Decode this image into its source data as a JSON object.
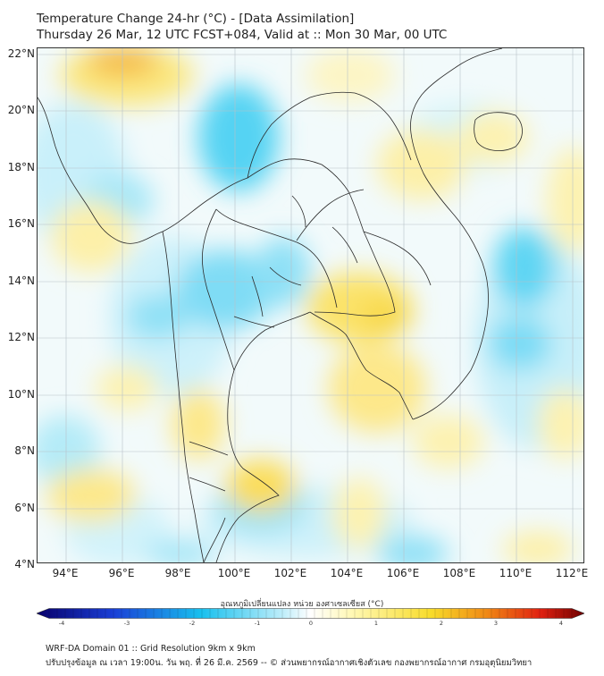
{
  "header": {
    "title_line1": "Temperature Change 24-hr (°C) - [Data Assimilation]",
    "title_line2": "Thursday 26 Mar, 12 UTC FCST+084, Valid at :: Mon 30 Mar, 00 UTC"
  },
  "map": {
    "lat_labels": [
      "22°N",
      "20°N",
      "18°N",
      "16°N",
      "14°N",
      "12°N",
      "10°N",
      "8°N",
      "6°N",
      "4°N"
    ],
    "lon_labels": [
      "94°E",
      "96°E",
      "98°E",
      "100°E",
      "102°E",
      "104°E",
      "106°E",
      "108°E",
      "110°E",
      "112°E"
    ]
  },
  "colorbar": {
    "title": "อุณหภูมิเปลี่ยนแปลง หน่วย องศาเซลเซียส (°C)",
    "ticks": [
      "-4",
      "-3",
      "-2",
      "-1",
      "0",
      "1",
      "2",
      "3",
      "4"
    ],
    "colors": {
      "dark_blue": "#08006b",
      "blue": "#1a3fd6",
      "cyan": "#18c0ee",
      "light_cyan": "#bfeefa",
      "white": "#ffffff",
      "light_yellow": "#fff7b0",
      "yellow": "#f8dc2a",
      "orange": "#f08a14",
      "red": "#e02010",
      "dark_red": "#6e0000"
    }
  },
  "footer": {
    "line1": "WRF-DA Domain 01 :: Grid Resolution 9km x 9km",
    "line2": "ปรับปรุงข้อมูล ณ เวลา 19:00น. วัน พฤ. ที่ 26 มี.ค. 2569 -- © ส่วนพยากรณ์อากาศเชิงตัวเลข กองพยากรณ์อากาศ กรมอุตุนิยมวิทยา"
  }
}
